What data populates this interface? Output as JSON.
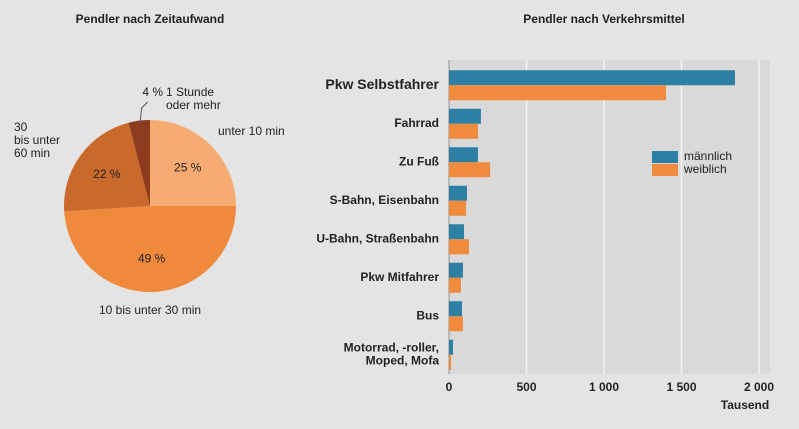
{
  "chart_data": [
    {
      "type": "pie",
      "title": "Pendler nach Zeitaufwand",
      "categories": [
        "unter 10 min",
        "10 bis unter 30 min",
        "30\nbis unter\n60 min",
        "1 Stunde\noder mehr"
      ],
      "values": [
        25,
        49,
        22,
        4
      ],
      "value_labels": [
        "25 %",
        "49 %",
        "22 %",
        "4 %"
      ],
      "colors": [
        "#f6ab72",
        "#ef8a3d",
        "#c96a2c",
        "#8c3b1f"
      ]
    },
    {
      "type": "hbar",
      "title": "Pendler nach Verkehrsmittel",
      "categories": [
        "Pkw Selbstfahrer",
        "Fahrrad",
        "Zu Fuß",
        "S-Bahn, Eisenbahn",
        "U-Bahn, Straßenbahn",
        "Pkw Mitfahrer",
        "Bus",
        "Motorrad, -roller,\nMoped, Mofa"
      ],
      "series": [
        {
          "name": "männlich",
          "color": "#2e7fa4",
          "values": [
            1845,
            206,
            187,
            116,
            97,
            90,
            84,
            26
          ]
        },
        {
          "name": "weiblich",
          "color": "#f08a3c",
          "values": [
            1400,
            187,
            265,
            110,
            129,
            77,
            90,
            13
          ]
        }
      ],
      "xlabel": "Tausend",
      "xlim": [
        0,
        2000
      ],
      "xticks": [
        0,
        500,
        {
          "value": 1000,
          "label": "1 000"
        },
        {
          "value": 1500,
          "label": "1 500"
        },
        {
          "value": 2000,
          "label": "2 000"
        }
      ],
      "grid": true,
      "legend": "right"
    }
  ]
}
